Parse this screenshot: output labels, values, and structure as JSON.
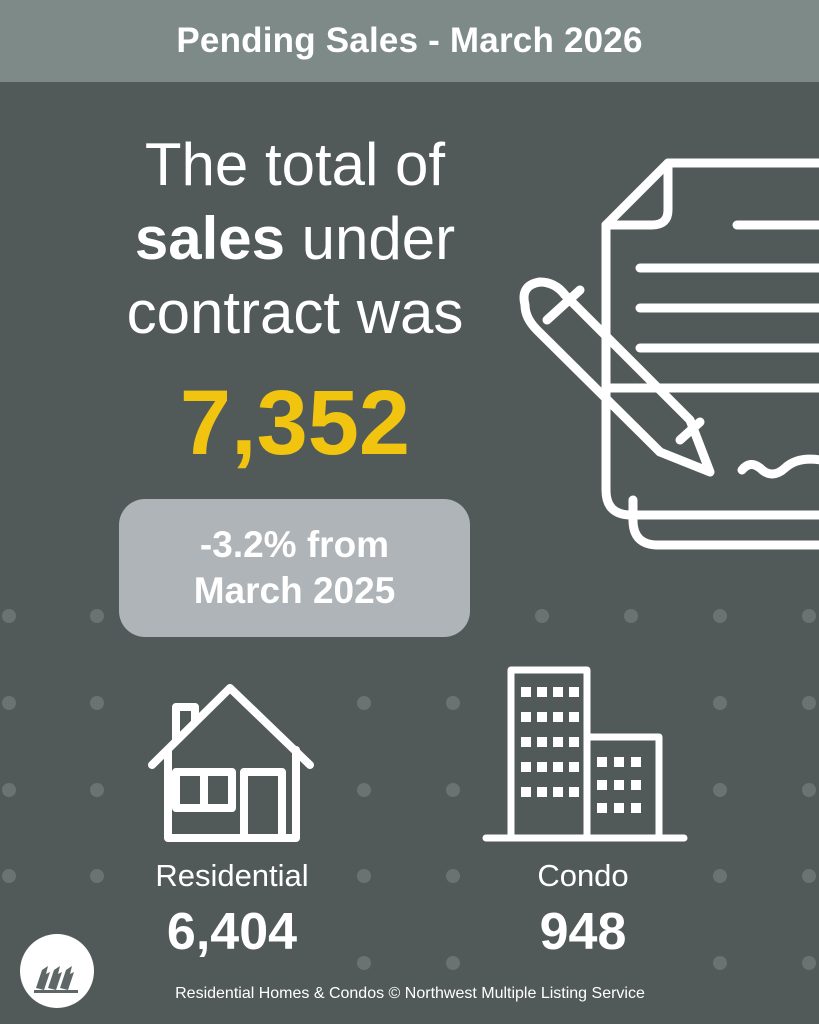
{
  "header": {
    "title": "Pending Sales - March 2026"
  },
  "headline": {
    "line1": "The total of",
    "line2_bold": "sales",
    "line2_rest": " under",
    "line3": "contract was"
  },
  "total": {
    "value": "7,352",
    "color": "#f1c40f"
  },
  "change": {
    "line1": "-3.2% from",
    "line2": "March 2025"
  },
  "stats": {
    "residential": {
      "label": "Residential",
      "value": "6,404",
      "icon": "house-icon"
    },
    "condo": {
      "label": "Condo",
      "value": "948",
      "icon": "buildings-icon"
    }
  },
  "footer": {
    "text": "Residential Homes & Condos © Northwest Multiple Listing Service"
  },
  "colors": {
    "background": "#525a59",
    "header": "#7e8a88",
    "pill": "#aeb4b7"
  }
}
